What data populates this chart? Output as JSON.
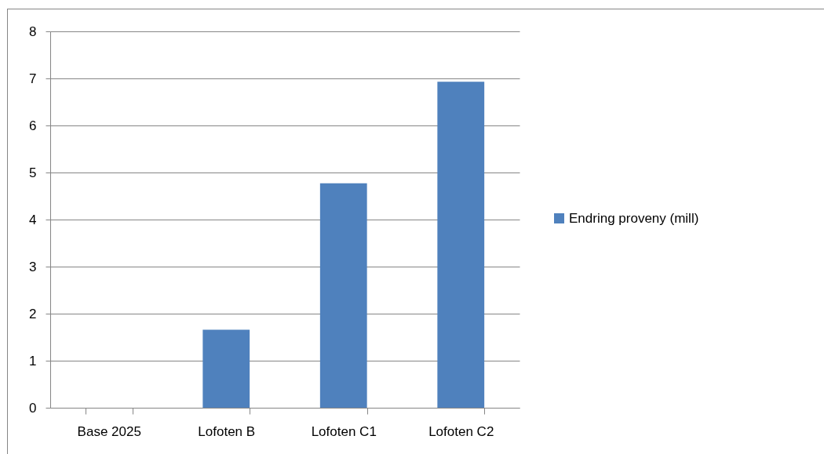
{
  "chart_data": {
    "type": "bar",
    "categories": [
      "Base 2025",
      "Lofoten B",
      "Lofoten C1",
      "Lofoten C2"
    ],
    "series": [
      {
        "name": "Endring proveny (mill)",
        "color": "#4f81bd",
        "values": [
          0,
          1.66,
          4.77,
          6.93
        ]
      }
    ],
    "ylim": [
      0,
      8
    ],
    "yticks": [
      0,
      1,
      2,
      3,
      4,
      5,
      6,
      7,
      8
    ],
    "grid": "y",
    "legend": "right"
  }
}
